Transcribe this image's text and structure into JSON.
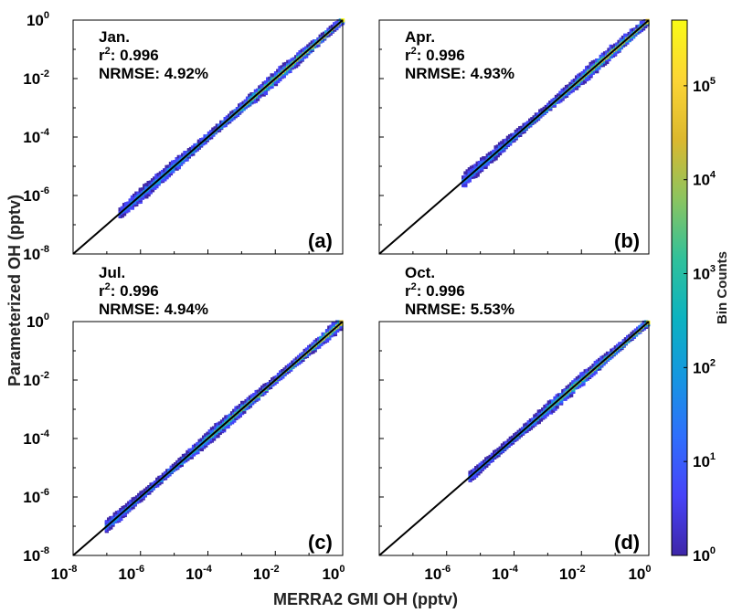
{
  "chart_data": {
    "type": "heatmap",
    "xlabel": "MERRA2 GMI OH (pptv)",
    "ylabel": "Parameterized OH (pptv)",
    "x_scale": "log",
    "y_scale": "log",
    "xlim": [
      1e-08,
      1
    ],
    "ylim": [
      1e-08,
      1
    ],
    "x_ticks": [
      {
        "base": "10",
        "exp": "-8"
      },
      {
        "base": "10",
        "exp": "-6"
      },
      {
        "base": "10",
        "exp": "-4"
      },
      {
        "base": "10",
        "exp": "-2"
      },
      {
        "base": "10",
        "exp": "0"
      }
    ],
    "y_ticks": [
      {
        "base": "10",
        "exp": "-8"
      },
      {
        "base": "10",
        "exp": "-6"
      },
      {
        "base": "10",
        "exp": "-4"
      },
      {
        "base": "10",
        "exp": "-2"
      },
      {
        "base": "10",
        "exp": "0"
      }
    ],
    "one_to_one_line": true,
    "colorbar": {
      "label": "Bin Counts",
      "scale": "log",
      "range": [
        1,
        500000
      ],
      "ticks": [
        {
          "base": "10",
          "exp": "0"
        },
        {
          "base": "10",
          "exp": "1"
        },
        {
          "base": "10",
          "exp": "2"
        },
        {
          "base": "10",
          "exp": "3"
        },
        {
          "base": "10",
          "exp": "4"
        },
        {
          "base": "10",
          "exp": "5"
        }
      ],
      "colormap": "parula",
      "colors": [
        "#3e26a8",
        "#4743f8",
        "#2f6ffc",
        "#1597e0",
        "#0cb3c0",
        "#31c19a",
        "#8cc45f",
        "#dcb82e",
        "#fcd535",
        "#f9fb15"
      ]
    },
    "panels": [
      {
        "id": "a",
        "label": "(a)",
        "month": "Jan.",
        "r2_label": "r",
        "r2_sup": "2",
        "r2_value": ": 0.996",
        "nrmse": "NRMSE: 4.92%",
        "range_log": [
          -6.6,
          0
        ],
        "show_x_ticks": false,
        "show_y_ticks": true
      },
      {
        "id": "b",
        "label": "(b)",
        "month": "Apr.",
        "r2_label": "r",
        "r2_sup": "2",
        "r2_value": ": 0.996",
        "nrmse": "NRMSE: 4.93%",
        "range_log": [
          -5.5,
          0
        ],
        "show_x_ticks": false,
        "show_y_ticks": false
      },
      {
        "id": "c",
        "label": "(c)",
        "month": "Jul.",
        "r2_label": "r",
        "r2_sup": "2",
        "r2_value": ": 0.996",
        "nrmse": "NRMSE: 4.94%",
        "range_log": [
          -7.0,
          0
        ],
        "show_x_ticks": true,
        "show_y_ticks": true
      },
      {
        "id": "d",
        "label": "(d)",
        "month": "Oct.",
        "r2_label": "r",
        "r2_sup": "2",
        "r2_value": ": 0.996",
        "nrmse": "NRMSE: 5.53%",
        "range_log": [
          -5.3,
          0
        ],
        "show_x_ticks": true,
        "show_y_ticks": false
      }
    ]
  }
}
